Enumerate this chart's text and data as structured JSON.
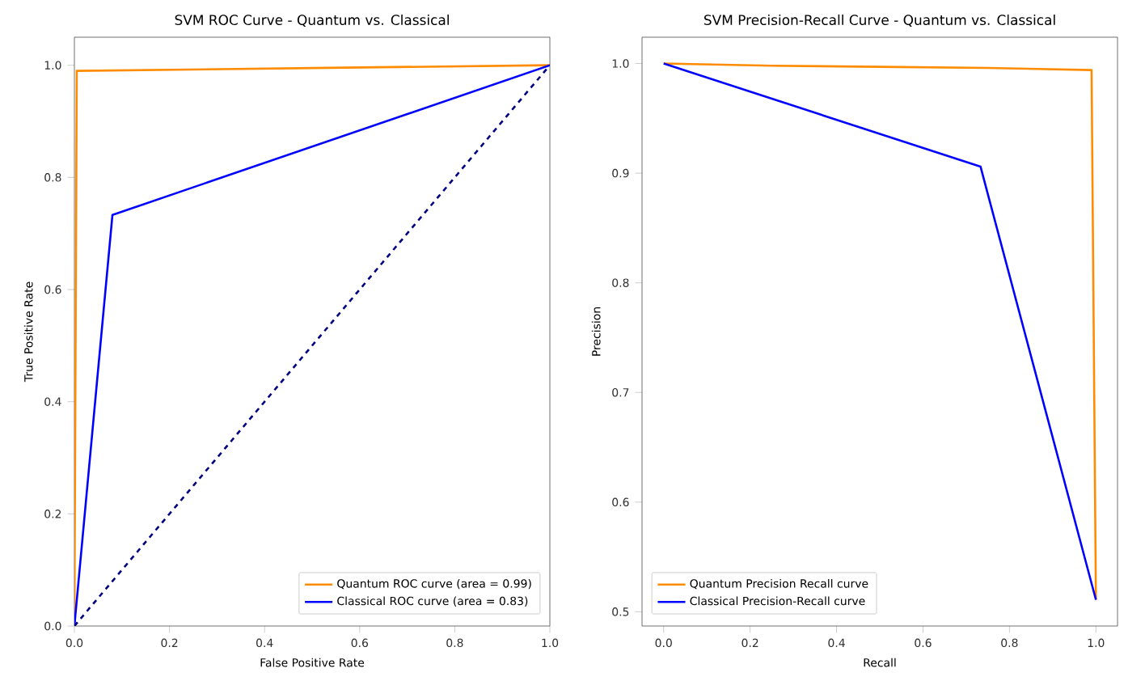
{
  "chart_data": [
    {
      "type": "line",
      "title": "SVM ROC Curve - Quantum vs. Classical",
      "xlabel": "False Positive Rate",
      "ylabel": "True Positive Rate",
      "xlim": [
        0,
        1
      ],
      "ylim": [
        0,
        1.05
      ],
      "xticks": [
        {
          "value": 0,
          "label": "0.0"
        },
        {
          "value": 0.2,
          "label": "0.2"
        },
        {
          "value": 0.4,
          "label": "0.4"
        },
        {
          "value": 0.6,
          "label": "0.6"
        },
        {
          "value": 0.8,
          "label": "0.8"
        },
        {
          "value": 1,
          "label": "1.0"
        }
      ],
      "yticks": [
        {
          "value": 0,
          "label": "0.0"
        },
        {
          "value": 0.2,
          "label": "0.2"
        },
        {
          "value": 0.4,
          "label": "0.4"
        },
        {
          "value": 0.6,
          "label": "0.6"
        },
        {
          "value": 0.8,
          "label": "0.8"
        },
        {
          "value": 1,
          "label": "1.0"
        }
      ],
      "legend": "bottom right",
      "series": [
        {
          "name": "Quantum ROC curve (area = 0.99)",
          "color": "#ff8c00",
          "x": [
            0,
            0.005,
            0.5,
            1
          ],
          "values": [
            0,
            0.99,
            0.995,
            1
          ]
        },
        {
          "name": "Classical ROC curve (area = 0.83)",
          "color": "#0000ff",
          "x": [
            0,
            0.08,
            1
          ],
          "values": [
            0,
            0.733,
            1
          ]
        },
        {
          "color": "#000080",
          "line_style": "dashed",
          "x": [
            0,
            1
          ],
          "values": [
            0,
            1
          ]
        }
      ]
    },
    {
      "type": "line",
      "title": "SVM Precision-Recall Curve - Quantum vs. Classical",
      "xlabel": "Recall",
      "ylabel": "Precision",
      "xlim": [
        -0.05,
        1.05
      ],
      "ylim": [
        0.487,
        1.024
      ],
      "xticks": [
        {
          "value": 0,
          "label": "0.0"
        },
        {
          "value": 0.2,
          "label": "0.2"
        },
        {
          "value": 0.4,
          "label": "0.4"
        },
        {
          "value": 0.6,
          "label": "0.6"
        },
        {
          "value": 0.8,
          "label": "0.8"
        },
        {
          "value": 1,
          "label": "1.0"
        }
      ],
      "yticks": [
        0.5,
        0.6,
        0.7,
        0.8,
        0.9,
        {
          "value": 1,
          "label": "1.0"
        }
      ],
      "legend": "bottom left",
      "series": [
        {
          "name": "Quantum Precision Recall curve",
          "color": "#ff8c00",
          "x": [
            0,
            0.25,
            0.5,
            0.75,
            0.99,
            1
          ],
          "values": [
            1,
            0.998,
            0.997,
            0.996,
            0.994,
            0.511
          ]
        },
        {
          "name": "Classical Precision-Recall curve",
          "color": "#0000ff",
          "x": [
            0,
            0.733,
            1
          ],
          "values": [
            1,
            0.906,
            0.511
          ]
        }
      ]
    }
  ]
}
